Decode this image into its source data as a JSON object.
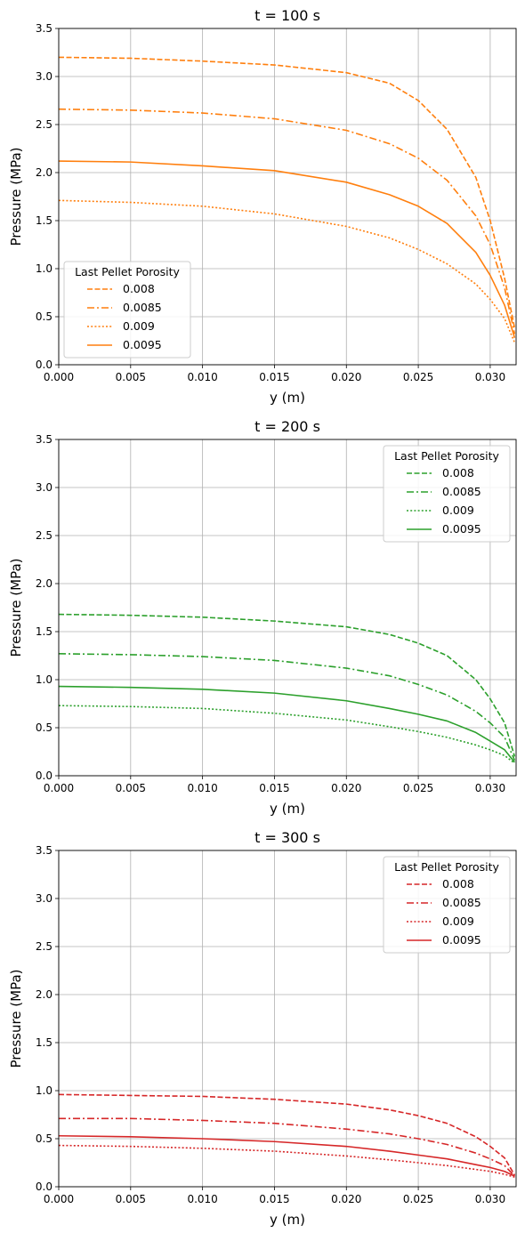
{
  "chart_data": [
    {
      "type": "line",
      "title": "t = 100 s",
      "xlabel": "y (m)",
      "ylabel": "Pressure (MPa)",
      "xlim": [
        0,
        0.0318
      ],
      "ylim": [
        0,
        3.5
      ],
      "xticks": [
        "0.000",
        "0.005",
        "0.010",
        "0.015",
        "0.020",
        "0.025",
        "0.030"
      ],
      "yticks": [
        "0.0",
        "0.5",
        "1.0",
        "1.5",
        "2.0",
        "2.5",
        "3.0",
        "3.5"
      ],
      "grid": true,
      "color": "#ff7f0e",
      "legend": {
        "title": "Last Pellet Porosity",
        "placement": "lower-left"
      },
      "series": [
        {
          "name": "0.008",
          "dash": "dashed",
          "x": [
            0,
            0.005,
            0.01,
            0.015,
            0.02,
            0.023,
            0.025,
            0.027,
            0.029,
            0.03,
            0.031,
            0.0317
          ],
          "y": [
            3.2,
            3.19,
            3.16,
            3.12,
            3.04,
            2.93,
            2.75,
            2.45,
            1.95,
            1.5,
            0.9,
            0.38
          ]
        },
        {
          "name": "0.0085",
          "dash": "dashdot",
          "x": [
            0,
            0.005,
            0.01,
            0.015,
            0.02,
            0.023,
            0.025,
            0.027,
            0.029,
            0.03,
            0.031,
            0.0317
          ],
          "y": [
            2.66,
            2.65,
            2.62,
            2.56,
            2.44,
            2.3,
            2.15,
            1.92,
            1.55,
            1.25,
            0.8,
            0.32
          ]
        },
        {
          "name": "0.009",
          "dash": "dotted",
          "x": [
            0,
            0.005,
            0.01,
            0.015,
            0.02,
            0.023,
            0.025,
            0.027,
            0.029,
            0.03,
            0.031,
            0.0317
          ],
          "y": [
            1.71,
            1.69,
            1.65,
            1.57,
            1.44,
            1.32,
            1.2,
            1.05,
            0.84,
            0.68,
            0.48,
            0.23
          ]
        },
        {
          "name": "0.0095",
          "dash": "solid",
          "x": [
            0,
            0.005,
            0.01,
            0.015,
            0.02,
            0.023,
            0.025,
            0.027,
            0.029,
            0.03,
            0.031,
            0.0317
          ],
          "y": [
            2.12,
            2.11,
            2.07,
            2.02,
            1.9,
            1.77,
            1.65,
            1.47,
            1.17,
            0.93,
            0.62,
            0.28
          ]
        }
      ]
    },
    {
      "type": "line",
      "title": "t = 200 s",
      "xlabel": "y (m)",
      "ylabel": "Pressure (MPa)",
      "xlim": [
        0,
        0.0318
      ],
      "ylim": [
        0,
        3.5
      ],
      "xticks": [
        "0.000",
        "0.005",
        "0.010",
        "0.015",
        "0.020",
        "0.025",
        "0.030"
      ],
      "yticks": [
        "0.0",
        "0.5",
        "1.0",
        "1.5",
        "2.0",
        "2.5",
        "3.0",
        "3.5"
      ],
      "grid": true,
      "color": "#2ca02c",
      "legend": {
        "title": "Last Pellet Porosity",
        "placement": "upper-right"
      },
      "series": [
        {
          "name": "0.008",
          "dash": "dashed",
          "x": [
            0,
            0.005,
            0.01,
            0.015,
            0.02,
            0.023,
            0.025,
            0.027,
            0.029,
            0.03,
            0.031,
            0.0317
          ],
          "y": [
            1.68,
            1.67,
            1.65,
            1.61,
            1.55,
            1.47,
            1.38,
            1.25,
            1.0,
            0.8,
            0.55,
            0.2
          ]
        },
        {
          "name": "0.0085",
          "dash": "dashdot",
          "x": [
            0,
            0.005,
            0.01,
            0.015,
            0.02,
            0.023,
            0.025,
            0.027,
            0.029,
            0.03,
            0.031,
            0.0317
          ],
          "y": [
            1.27,
            1.26,
            1.24,
            1.2,
            1.12,
            1.04,
            0.95,
            0.84,
            0.67,
            0.55,
            0.4,
            0.16
          ]
        },
        {
          "name": "0.009",
          "dash": "dotted",
          "x": [
            0,
            0.005,
            0.01,
            0.015,
            0.02,
            0.023,
            0.025,
            0.027,
            0.029,
            0.03,
            0.031,
            0.0317
          ],
          "y": [
            0.73,
            0.72,
            0.7,
            0.65,
            0.58,
            0.51,
            0.46,
            0.4,
            0.32,
            0.27,
            0.21,
            0.13
          ]
        },
        {
          "name": "0.0095",
          "dash": "solid",
          "x": [
            0,
            0.005,
            0.01,
            0.015,
            0.02,
            0.023,
            0.025,
            0.027,
            0.029,
            0.03,
            0.031,
            0.0317
          ],
          "y": [
            0.93,
            0.92,
            0.9,
            0.86,
            0.78,
            0.7,
            0.64,
            0.57,
            0.45,
            0.36,
            0.27,
            0.14
          ]
        }
      ]
    },
    {
      "type": "line",
      "title": "t = 300 s",
      "xlabel": "y (m)",
      "ylabel": "Pressure (MPa)",
      "xlim": [
        0,
        0.0318
      ],
      "ylim": [
        0,
        3.5
      ],
      "xticks": [
        "0.000",
        "0.005",
        "0.010",
        "0.015",
        "0.020",
        "0.025",
        "0.030"
      ],
      "yticks": [
        "0.0",
        "0.5",
        "1.0",
        "1.5",
        "2.0",
        "2.5",
        "3.0",
        "3.5"
      ],
      "grid": true,
      "color": "#d62728",
      "legend": {
        "title": "Last Pellet Porosity",
        "placement": "upper-right"
      },
      "series": [
        {
          "name": "0.008",
          "dash": "dashed",
          "x": [
            0,
            0.005,
            0.01,
            0.015,
            0.02,
            0.023,
            0.025,
            0.027,
            0.029,
            0.03,
            0.031,
            0.0317
          ],
          "y": [
            0.96,
            0.95,
            0.94,
            0.91,
            0.86,
            0.8,
            0.74,
            0.66,
            0.52,
            0.42,
            0.3,
            0.12
          ]
        },
        {
          "name": "0.0085",
          "dash": "dashdot",
          "x": [
            0,
            0.005,
            0.01,
            0.015,
            0.02,
            0.023,
            0.025,
            0.027,
            0.029,
            0.03,
            0.031,
            0.0317
          ],
          "y": [
            0.71,
            0.71,
            0.69,
            0.66,
            0.6,
            0.55,
            0.5,
            0.44,
            0.35,
            0.29,
            0.22,
            0.11
          ]
        },
        {
          "name": "0.009",
          "dash": "dotted",
          "x": [
            0,
            0.005,
            0.01,
            0.015,
            0.02,
            0.023,
            0.025,
            0.027,
            0.029,
            0.03,
            0.031,
            0.0317
          ],
          "y": [
            0.43,
            0.42,
            0.4,
            0.37,
            0.32,
            0.28,
            0.25,
            0.22,
            0.18,
            0.16,
            0.13,
            0.1
          ]
        },
        {
          "name": "0.0095",
          "dash": "solid",
          "x": [
            0,
            0.005,
            0.01,
            0.015,
            0.02,
            0.023,
            0.025,
            0.027,
            0.029,
            0.03,
            0.031,
            0.0317
          ],
          "y": [
            0.53,
            0.52,
            0.5,
            0.47,
            0.42,
            0.37,
            0.33,
            0.29,
            0.23,
            0.2,
            0.16,
            0.11
          ]
        }
      ]
    }
  ]
}
